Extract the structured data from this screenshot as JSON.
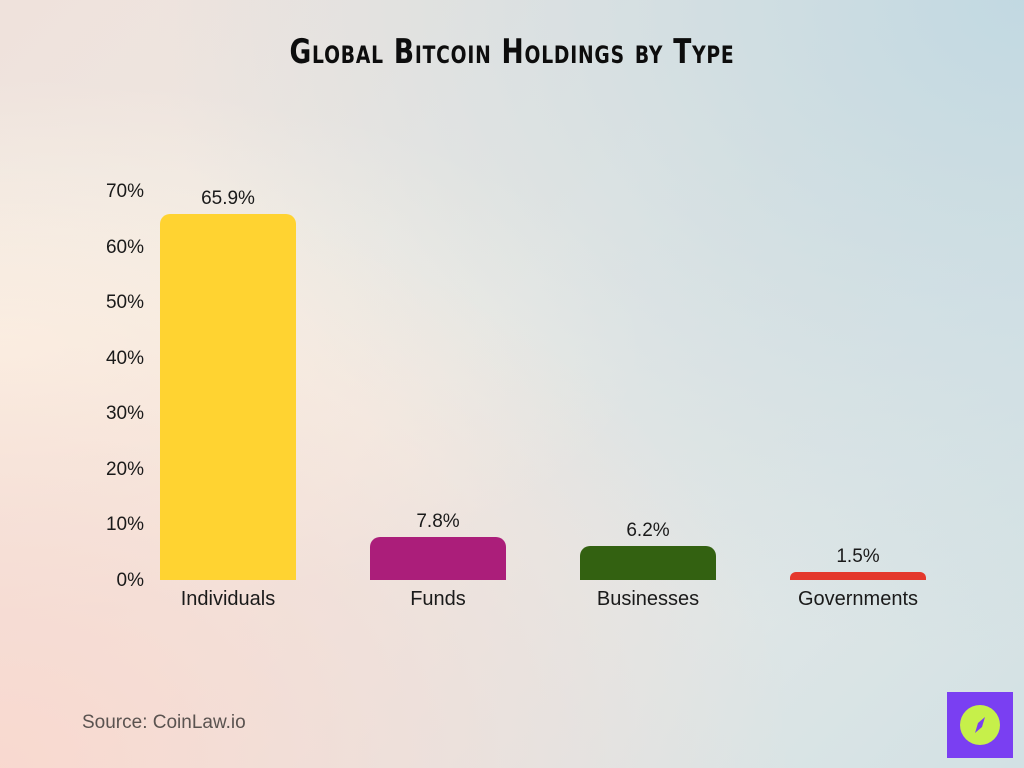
{
  "title": "Global Bitcoin Holdings by Type",
  "source": "Source: CoinLaw.io",
  "logo": {
    "icon": "compass-icon",
    "bg_color": "#7a3ff2",
    "fg_color": "#c6f04a"
  },
  "y_axis": {
    "ticks": [
      "70%",
      "60%",
      "50%",
      "40%",
      "30%",
      "20%",
      "10%",
      "0%"
    ]
  },
  "bars": [
    {
      "category": "Individuals",
      "value": 65.9,
      "label": "65.9%",
      "color": "#ffd331"
    },
    {
      "category": "Funds",
      "value": 7.8,
      "label": "7.8%",
      "color": "#ab1e7a"
    },
    {
      "category": "Businesses",
      "value": 6.2,
      "label": "6.2%",
      "color": "#336111"
    },
    {
      "category": "Governments",
      "value": 1.5,
      "label": "1.5%",
      "color": "#e4382c"
    }
  ],
  "chart_data": {
    "type": "bar",
    "title": "Global Bitcoin Holdings by Type",
    "categories": [
      "Individuals",
      "Funds",
      "Businesses",
      "Governments"
    ],
    "values": [
      65.9,
      7.8,
      6.2,
      1.5
    ],
    "data_labels": [
      "65.9%",
      "7.8%",
      "6.2%",
      "1.5%"
    ],
    "colors": [
      "#ffd331",
      "#ab1e7a",
      "#336111",
      "#e4382c"
    ],
    "xlabel": "",
    "ylabel": "",
    "ylim": [
      0,
      70
    ],
    "y_ticks": [
      "0%",
      "10%",
      "20%",
      "30%",
      "40%",
      "50%",
      "60%",
      "70%"
    ],
    "grid": false,
    "legend": null,
    "annotations": [
      "Source: CoinLaw.io"
    ]
  }
}
